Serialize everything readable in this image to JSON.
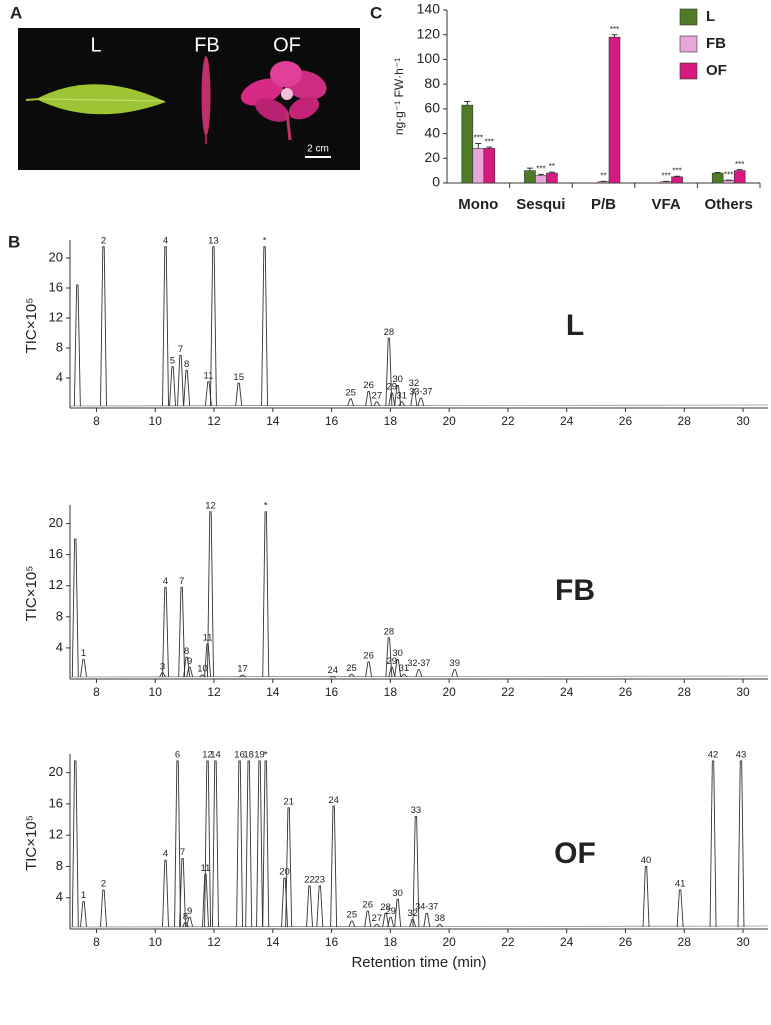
{
  "photo": {
    "panel": "A",
    "labels": [
      "L",
      "FB",
      "OF"
    ],
    "scale_bar": "2 cm"
  },
  "chart_data": [
    {
      "type": "bar",
      "panel": "C",
      "y_label": "ng·g⁻¹ FW·h⁻¹",
      "categories": [
        "Mono",
        "Sesqui",
        "P/B",
        "VFA",
        "Others"
      ],
      "series": [
        {
          "name": "L",
          "color": "#4f7b27",
          "values": [
            63,
            10,
            0,
            0,
            8
          ],
          "errors": [
            3,
            2,
            0,
            0,
            0.5
          ],
          "significance": [
            null,
            null,
            null,
            null,
            null
          ]
        },
        {
          "name": "FB",
          "color": "#e8a6db",
          "values": [
            28,
            6,
            1,
            1,
            2
          ],
          "errors": [
            4,
            1,
            0.3,
            0.3,
            0.3
          ],
          "significance": [
            "***",
            "***",
            "**",
            "***",
            "***"
          ]
        },
        {
          "name": "OF",
          "color": "#d61a80",
          "values": [
            28,
            8,
            118,
            5,
            10
          ],
          "errors": [
            1,
            0.8,
            2,
            0.5,
            0.8
          ],
          "significance": [
            "***",
            "**",
            "***",
            "***",
            "***"
          ]
        }
      ],
      "ylim": [
        0,
        140
      ],
      "yticks": [
        0,
        20,
        40,
        60,
        80,
        100,
        120,
        140
      ],
      "legend": "top-right"
    },
    {
      "type": "peaks",
      "panel": "B",
      "name": "L",
      "y_label": "TIC×10⁵",
      "x": [
        7.35,
        8.24,
        10.35,
        10.59,
        10.86,
        11.07,
        11.81,
        11.98,
        12.84,
        13.72,
        16.65,
        17.26,
        17.54,
        17.95,
        18.05,
        18.25,
        18.39,
        18.8,
        19.04
      ],
      "values": [
        16.4,
        21.5,
        21.5,
        5.5,
        7,
        5,
        3.5,
        21.5,
        3.3,
        21.5,
        1.2,
        2.2,
        0.8,
        9.3,
        2,
        3,
        0.8,
        2.5,
        1.3
      ],
      "peak_labels": [
        null,
        "2",
        "4",
        "5",
        "7",
        "8",
        "11",
        "13",
        "15",
        "*",
        "25",
        "26",
        "27",
        "28",
        "29",
        "30",
        "31",
        "32",
        "33-37"
      ],
      "color": "#333333",
      "xlim": [
        7.1,
        30.85
      ],
      "xticks": [
        8,
        10,
        12,
        14,
        16,
        18,
        20,
        22,
        24,
        26,
        28,
        30
      ],
      "ylim": [
        0,
        22
      ],
      "yticks": [
        4,
        8,
        12,
        16,
        20
      ]
    },
    {
      "type": "peaks",
      "name": "FB",
      "y_label": "TIC×10⁵",
      "x": [
        7.28,
        7.56,
        10.25,
        10.35,
        10.9,
        11.07,
        11.17,
        11.61,
        11.78,
        11.88,
        12.97,
        13.76,
        16.04,
        16.68,
        17.26,
        17.95,
        18.05,
        18.25,
        18.46,
        18.97,
        20.19
      ],
      "values": [
        18,
        2.5,
        0.8,
        11.8,
        11.8,
        2.8,
        1.5,
        0.5,
        4.5,
        21.5,
        0.5,
        21.5,
        0.3,
        0.6,
        2.2,
        5.3,
        1.5,
        2.5,
        0.6,
        1.2,
        1.2
      ],
      "peak_labels": [
        null,
        "1",
        "3",
        "4",
        "7",
        "8",
        "9",
        "10",
        "11",
        "12",
        "17",
        "*",
        "24",
        "25",
        "26",
        "28",
        "29",
        "30",
        "31",
        "32-37",
        "39"
      ],
      "color": "#333333",
      "xlim": [
        7.1,
        30.85
      ],
      "xticks": [
        8,
        10,
        12,
        14,
        16,
        18,
        20,
        22,
        24,
        26,
        28,
        30
      ],
      "ylim": [
        0,
        22
      ],
      "yticks": [
        4,
        8,
        12,
        16,
        20
      ]
    },
    {
      "type": "peaks",
      "name": "OF",
      "y_label": "TIC×10⁵",
      "x_label": "Retention time (min)",
      "x": [
        7.28,
        7.56,
        8.24,
        10.35,
        10.76,
        10.93,
        11.03,
        11.17,
        11.71,
        11.78,
        12.05,
        12.87,
        13.18,
        13.55,
        13.76,
        14.4,
        14.54,
        15.25,
        15.6,
        16.07,
        16.69,
        17.23,
        17.54,
        17.84,
        18.01,
        18.25,
        18.76,
        18.87,
        19.24,
        19.68,
        26.7,
        27.86,
        28.98,
        29.93
      ],
      "values": [
        21.5,
        3.5,
        5,
        8.8,
        21.5,
        9,
        0.8,
        1.5,
        7,
        21.5,
        21.5,
        21.5,
        21.5,
        21.5,
        21.5,
        6.5,
        15.5,
        5.5,
        5.5,
        15.7,
        1,
        2.3,
        0.6,
        2,
        1.5,
        3.8,
        1.2,
        14.4,
        2,
        0.6,
        8,
        5,
        21.5,
        21.5
      ],
      "peak_labels": [
        null,
        "1",
        "2",
        "4",
        "6",
        "7",
        "8",
        "9",
        "11",
        "12",
        "14",
        "16",
        "18",
        "19",
        "*",
        "20",
        "21",
        "22",
        "23",
        "24",
        "25",
        "26",
        "27",
        "28",
        "29",
        "30",
        "32",
        "33",
        "34-37",
        "38",
        "40",
        "41",
        "42",
        "43"
      ],
      "color": "#333333",
      "xlim": [
        7.1,
        30.85
      ],
      "xticks": [
        8,
        10,
        12,
        14,
        16,
        18,
        20,
        22,
        24,
        26,
        28,
        30
      ],
      "ylim": [
        0,
        22
      ],
      "yticks": [
        4,
        8,
        12,
        16,
        20
      ]
    }
  ]
}
